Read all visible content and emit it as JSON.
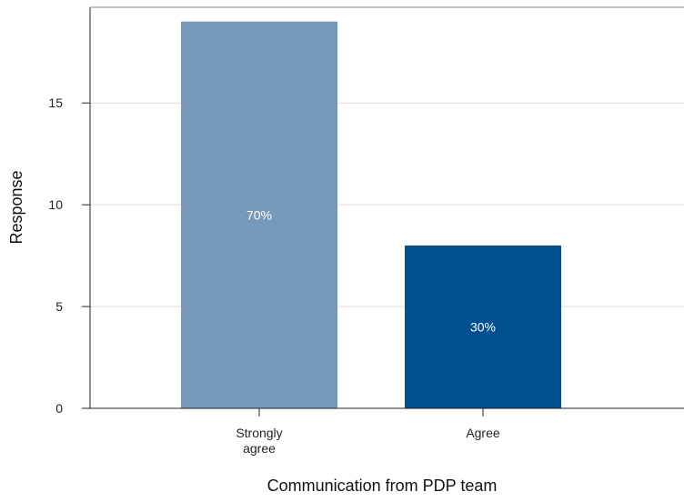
{
  "chart_data": {
    "type": "bar",
    "title": "",
    "xlabel": "Communication from PDP team",
    "ylabel": "Response",
    "categories": [
      [
        "Strongly",
        "agree"
      ],
      [
        "Agree"
      ]
    ],
    "values": [
      19,
      8
    ],
    "data_labels": [
      "70%",
      "30%"
    ],
    "bar_colors": [
      "#7799bb",
      "#004f8f"
    ],
    "ylim": [
      0,
      19.7
    ],
    "yticks": [
      0,
      5,
      10,
      15
    ],
    "grid": "horizontal",
    "grid_color": "#dcdccc",
    "axis_color": "#222222"
  }
}
